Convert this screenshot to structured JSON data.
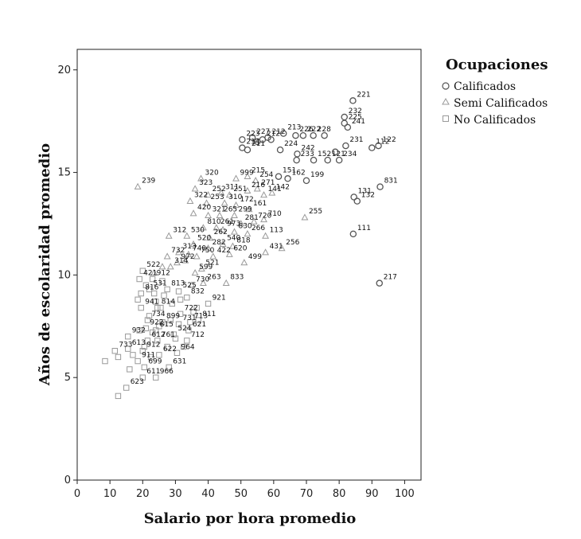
{
  "chart_data": {
    "type": "scatter",
    "xlabel": "Salario por hora promedio",
    "ylabel": "Años de escolaridad promedio",
    "xlim": [
      0,
      105
    ],
    "ylim": [
      0,
      21
    ],
    "xticks": [
      0,
      10,
      20,
      30,
      40,
      50,
      60,
      70,
      80,
      90,
      100
    ],
    "yticks": [
      0,
      5,
      10,
      15,
      20
    ],
    "grid": false,
    "legend": {
      "title": "Ocupaciones",
      "position": "right",
      "entries": [
        "Calificados",
        "Semi Calificados",
        "No Calificados"
      ]
    },
    "series": [
      {
        "name": "Calificados",
        "marker": "circle",
        "color": "#555555",
        "points": [
          {
            "x": 84.2,
            "y": 18.5,
            "label": "221"
          },
          {
            "x": 81.6,
            "y": 17.7,
            "label": "232"
          },
          {
            "x": 81.6,
            "y": 17.4,
            "label": "225"
          },
          {
            "x": 82.6,
            "y": 17.2,
            "label": "241"
          },
          {
            "x": 50.4,
            "y": 16.6,
            "label": "223"
          },
          {
            "x": 53.5,
            "y": 16.7,
            "label": "227"
          },
          {
            "x": 56.6,
            "y": 16.6,
            "label": "212"
          },
          {
            "x": 58.2,
            "y": 16.7,
            "label": "212"
          },
          {
            "x": 55.0,
            "y": 16.5,
            "label": ""
          },
          {
            "x": 59.2,
            "y": 16.6,
            "label": ""
          },
          {
            "x": 63.0,
            "y": 16.9,
            "label": "213"
          },
          {
            "x": 66.7,
            "y": 16.8,
            "label": "226"
          },
          {
            "x": 69.0,
            "y": 16.8,
            "label": "222"
          },
          {
            "x": 72.1,
            "y": 16.8,
            "label": "228"
          },
          {
            "x": 75.5,
            "y": 16.8,
            "label": ""
          },
          {
            "x": 50.4,
            "y": 16.2,
            "label": "214"
          },
          {
            "x": 52.0,
            "y": 16.1,
            "label": "211"
          },
          {
            "x": 62.0,
            "y": 16.1,
            "label": "224"
          },
          {
            "x": 67.2,
            "y": 15.9,
            "label": "242"
          },
          {
            "x": 82.0,
            "y": 16.3,
            "label": "231"
          },
          {
            "x": 92.0,
            "y": 16.3,
            "label": "122"
          },
          {
            "x": 90.0,
            "y": 16.2,
            "label": "112"
          },
          {
            "x": 78.8,
            "y": 16.0,
            "label": ""
          },
          {
            "x": 67.0,
            "y": 15.6,
            "label": "233"
          },
          {
            "x": 72.2,
            "y": 15.6,
            "label": "152"
          },
          {
            "x": 76.5,
            "y": 15.6,
            "label": "121"
          },
          {
            "x": 80.0,
            "y": 15.6,
            "label": "234"
          },
          {
            "x": 61.5,
            "y": 14.8,
            "label": "151"
          },
          {
            "x": 64.3,
            "y": 14.7,
            "label": "162"
          },
          {
            "x": 70.0,
            "y": 14.6,
            "label": "199"
          },
          {
            "x": 92.5,
            "y": 14.3,
            "label": "831"
          },
          {
            "x": 84.5,
            "y": 13.8,
            "label": "131"
          },
          {
            "x": 85.5,
            "y": 13.6,
            "label": "132"
          },
          {
            "x": 84.3,
            "y": 12.0,
            "label": "111"
          },
          {
            "x": 92.3,
            "y": 9.6,
            "label": "217"
          }
        ]
      },
      {
        "name": "Semi Calificados",
        "marker": "triangle",
        "color": "#999999",
        "points": [
          {
            "x": 18.5,
            "y": 14.3,
            "label": "239"
          },
          {
            "x": 37.8,
            "y": 14.7,
            "label": "320"
          },
          {
            "x": 48.5,
            "y": 14.7,
            "label": "999"
          },
          {
            "x": 52.0,
            "y": 14.8,
            "label": "215"
          },
          {
            "x": 54.5,
            "y": 14.6,
            "label": "254"
          },
          {
            "x": 36.0,
            "y": 14.2,
            "label": "323"
          },
          {
            "x": 40.0,
            "y": 13.9,
            "label": "252"
          },
          {
            "x": 44.0,
            "y": 14.0,
            "label": "311"
          },
          {
            "x": 46.5,
            "y": 13.9,
            "label": "251"
          },
          {
            "x": 52.0,
            "y": 14.1,
            "label": "216"
          },
          {
            "x": 55.0,
            "y": 14.2,
            "label": "271"
          },
          {
            "x": 57.0,
            "y": 13.9,
            "label": "141"
          },
          {
            "x": 59.5,
            "y": 14.0,
            "label": "142"
          },
          {
            "x": 34.5,
            "y": 13.6,
            "label": "322"
          },
          {
            "x": 39.5,
            "y": 13.5,
            "label": "253"
          },
          {
            "x": 45.0,
            "y": 13.5,
            "label": "310"
          },
          {
            "x": 48.5,
            "y": 13.4,
            "label": "172"
          },
          {
            "x": 52.5,
            "y": 13.2,
            "label": "161"
          },
          {
            "x": 35.5,
            "y": 13.0,
            "label": "420"
          },
          {
            "x": 40.0,
            "y": 12.9,
            "label": "321"
          },
          {
            "x": 43.5,
            "y": 12.9,
            "label": "265"
          },
          {
            "x": 48.0,
            "y": 12.9,
            "label": "299"
          },
          {
            "x": 50.0,
            "y": 12.5,
            "label": "281"
          },
          {
            "x": 54.0,
            "y": 12.6,
            "label": "720"
          },
          {
            "x": 57.0,
            "y": 12.7,
            "label": "710"
          },
          {
            "x": 69.5,
            "y": 12.8,
            "label": "255"
          },
          {
            "x": 38.5,
            "y": 12.3,
            "label": "810"
          },
          {
            "x": 42.5,
            "y": 12.3,
            "label": "261"
          },
          {
            "x": 44.5,
            "y": 12.2,
            "label": "973"
          },
          {
            "x": 48.0,
            "y": 12.1,
            "label": "830"
          },
          {
            "x": 52.0,
            "y": 12.0,
            "label": "266"
          },
          {
            "x": 57.5,
            "y": 11.9,
            "label": "113"
          },
          {
            "x": 28.0,
            "y": 11.9,
            "label": "312"
          },
          {
            "x": 33.5,
            "y": 11.9,
            "label": "530"
          },
          {
            "x": 40.5,
            "y": 11.8,
            "label": "262"
          },
          {
            "x": 35.5,
            "y": 11.5,
            "label": "520"
          },
          {
            "x": 44.5,
            "y": 11.5,
            "label": "540"
          },
          {
            "x": 47.5,
            "y": 11.4,
            "label": "818"
          },
          {
            "x": 40.0,
            "y": 11.3,
            "label": "282"
          },
          {
            "x": 31.0,
            "y": 11.1,
            "label": "313"
          },
          {
            "x": 34.0,
            "y": 11.0,
            "label": "740"
          },
          {
            "x": 36.5,
            "y": 10.9,
            "label": "750"
          },
          {
            "x": 41.5,
            "y": 10.9,
            "label": "422"
          },
          {
            "x": 46.5,
            "y": 11.0,
            "label": "620"
          },
          {
            "x": 57.5,
            "y": 11.1,
            "label": "431"
          },
          {
            "x": 62.5,
            "y": 11.3,
            "label": "256"
          },
          {
            "x": 27.5,
            "y": 10.9,
            "label": "732"
          },
          {
            "x": 30.5,
            "y": 10.6,
            "label": "972"
          },
          {
            "x": 28.5,
            "y": 10.4,
            "label": "314"
          },
          {
            "x": 38.0,
            "y": 10.3,
            "label": "521"
          },
          {
            "x": 36.0,
            "y": 10.1,
            "label": "599"
          },
          {
            "x": 51.0,
            "y": 10.6,
            "label": "499"
          },
          {
            "x": 35.0,
            "y": 9.5,
            "label": "730"
          },
          {
            "x": 38.5,
            "y": 9.6,
            "label": "263"
          },
          {
            "x": 45.5,
            "y": 9.6,
            "label": "833"
          },
          {
            "x": 23.5,
            "y": 10.1,
            "label": ""
          },
          {
            "x": 26.0,
            "y": 10.4,
            "label": ""
          },
          {
            "x": 33.0,
            "y": 10.7,
            "label": ""
          }
        ]
      },
      {
        "name": "No Calificados",
        "marker": "square",
        "color": "#999999",
        "points": [
          {
            "x": 20.0,
            "y": 10.2,
            "label": "522"
          },
          {
            "x": 19.0,
            "y": 9.8,
            "label": "421"
          },
          {
            "x": 23.0,
            "y": 9.8,
            "label": "912"
          },
          {
            "x": 22.0,
            "y": 9.3,
            "label": "531"
          },
          {
            "x": 27.5,
            "y": 9.3,
            "label": "813"
          },
          {
            "x": 31.0,
            "y": 9.2,
            "label": "525"
          },
          {
            "x": 19.5,
            "y": 9.1,
            "label": "816"
          },
          {
            "x": 33.5,
            "y": 8.9,
            "label": "832"
          },
          {
            "x": 19.5,
            "y": 8.4,
            "label": "941"
          },
          {
            "x": 24.5,
            "y": 8.4,
            "label": "814"
          },
          {
            "x": 40.0,
            "y": 8.6,
            "label": "921"
          },
          {
            "x": 31.5,
            "y": 8.1,
            "label": "722"
          },
          {
            "x": 21.5,
            "y": 7.8,
            "label": "734"
          },
          {
            "x": 26.0,
            "y": 7.7,
            "label": "899"
          },
          {
            "x": 31.0,
            "y": 7.6,
            "label": "731"
          },
          {
            "x": 34.5,
            "y": 7.7,
            "label": "713"
          },
          {
            "x": 37.0,
            "y": 7.8,
            "label": "811"
          },
          {
            "x": 21.0,
            "y": 7.4,
            "label": "922"
          },
          {
            "x": 24.0,
            "y": 7.3,
            "label": "815"
          },
          {
            "x": 29.5,
            "y": 7.1,
            "label": "524"
          },
          {
            "x": 34.0,
            "y": 7.3,
            "label": "621"
          },
          {
            "x": 15.5,
            "y": 7.0,
            "label": "932"
          },
          {
            "x": 21.5,
            "y": 6.8,
            "label": "612"
          },
          {
            "x": 24.5,
            "y": 6.8,
            "label": "761"
          },
          {
            "x": 33.5,
            "y": 6.8,
            "label": "712"
          },
          {
            "x": 11.5,
            "y": 6.3,
            "label": "733"
          },
          {
            "x": 15.5,
            "y": 6.4,
            "label": "613"
          },
          {
            "x": 20.0,
            "y": 6.3,
            "label": "912"
          },
          {
            "x": 25.0,
            "y": 6.1,
            "label": "622"
          },
          {
            "x": 30.5,
            "y": 6.2,
            "label": "964"
          },
          {
            "x": 18.5,
            "y": 5.8,
            "label": "911"
          },
          {
            "x": 20.5,
            "y": 5.5,
            "label": "699"
          },
          {
            "x": 28.0,
            "y": 5.5,
            "label": "631"
          },
          {
            "x": 20.0,
            "y": 5.0,
            "label": "611"
          },
          {
            "x": 24.0,
            "y": 5.0,
            "label": "966"
          },
          {
            "x": 15.0,
            "y": 4.5,
            "label": "623"
          },
          {
            "x": 8.5,
            "y": 5.8,
            "label": ""
          },
          {
            "x": 12.5,
            "y": 4.1,
            "label": ""
          },
          {
            "x": 12.5,
            "y": 6.0,
            "label": ""
          },
          {
            "x": 16.0,
            "y": 5.4,
            "label": ""
          },
          {
            "x": 17.0,
            "y": 6.1,
            "label": ""
          },
          {
            "x": 19.0,
            "y": 7.3,
            "label": ""
          },
          {
            "x": 20.5,
            "y": 6.5,
            "label": ""
          },
          {
            "x": 22.0,
            "y": 8.0,
            "label": ""
          },
          {
            "x": 23.0,
            "y": 7.2,
            "label": ""
          },
          {
            "x": 24.0,
            "y": 8.7,
            "label": ""
          },
          {
            "x": 25.5,
            "y": 8.4,
            "label": ""
          },
          {
            "x": 26.5,
            "y": 9.0,
            "label": ""
          },
          {
            "x": 27.5,
            "y": 6.5,
            "label": ""
          },
          {
            "x": 28.5,
            "y": 7.8,
            "label": ""
          },
          {
            "x": 29.0,
            "y": 8.6,
            "label": ""
          },
          {
            "x": 30.0,
            "y": 6.9,
            "label": ""
          },
          {
            "x": 31.5,
            "y": 8.8,
            "label": ""
          },
          {
            "x": 32.5,
            "y": 6.5,
            "label": ""
          },
          {
            "x": 35.5,
            "y": 8.2,
            "label": ""
          },
          {
            "x": 36.5,
            "y": 8.4,
            "label": ""
          },
          {
            "x": 21.0,
            "y": 9.5,
            "label": ""
          },
          {
            "x": 23.5,
            "y": 9.1,
            "label": ""
          },
          {
            "x": 26.0,
            "y": 9.7,
            "label": ""
          },
          {
            "x": 18.5,
            "y": 8.8,
            "label": ""
          },
          {
            "x": 22.5,
            "y": 6.0,
            "label": ""
          },
          {
            "x": 25.0,
            "y": 7.5,
            "label": ""
          }
        ]
      }
    ]
  }
}
